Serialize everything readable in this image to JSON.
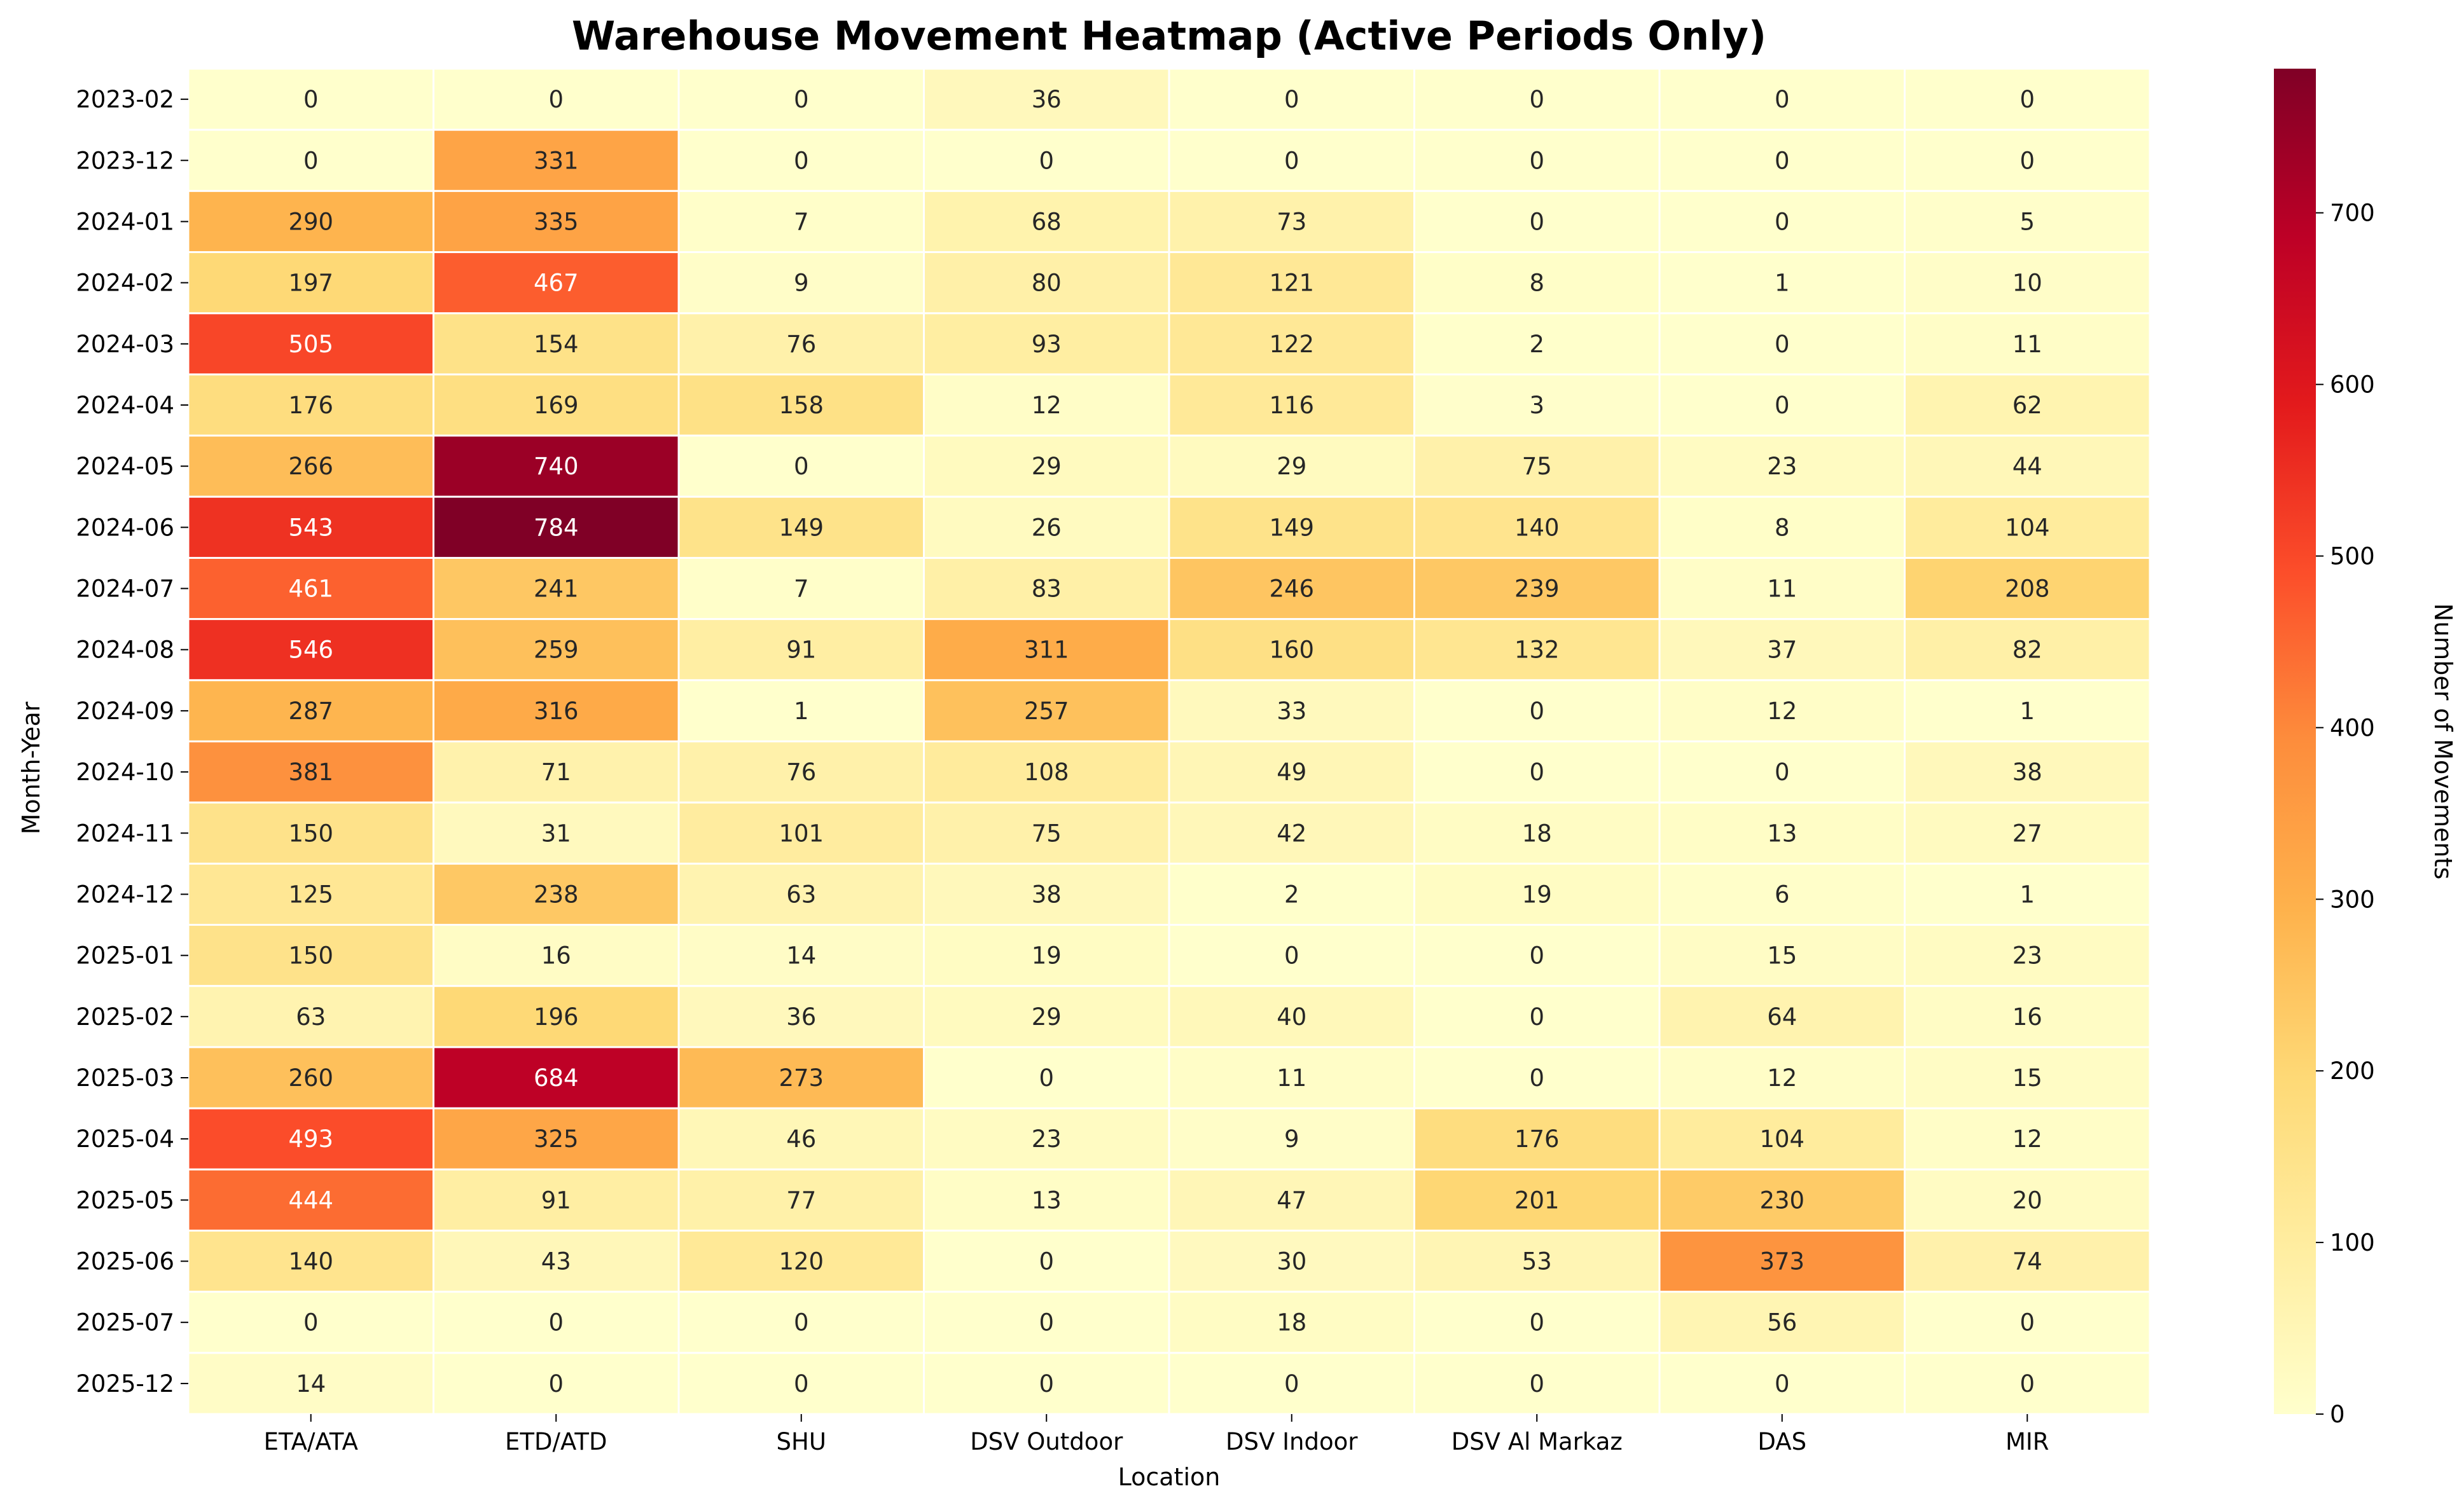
{
  "chart_data": {
    "type": "heatmap",
    "title": "Warehouse Movement Heatmap (Active Periods Only)",
    "xlabel": "Location",
    "ylabel": "Month-Year",
    "colorbar_label": "Number of Movements",
    "colormap": "YlOrRd",
    "color_stops": [
      "#ffffcc",
      "#ffeda0",
      "#fed976",
      "#feb24c",
      "#fd8d3c",
      "#fc4e2a",
      "#e31a1c",
      "#bd0026",
      "#800026"
    ],
    "vmin": 0,
    "vmax": 784,
    "colorbar_ticks": [
      0,
      100,
      200,
      300,
      400,
      500,
      600,
      700
    ],
    "columns": [
      "ETA/ATA",
      "ETD/ATD",
      "SHU",
      "DSV Outdoor",
      "DSV Indoor",
      "DSV Al Markaz",
      "DAS",
      "MIR"
    ],
    "rows": [
      "2023-02",
      "2023-12",
      "2024-01",
      "2024-02",
      "2024-03",
      "2024-04",
      "2024-05",
      "2024-06",
      "2024-07",
      "2024-08",
      "2024-09",
      "2024-10",
      "2024-11",
      "2024-12",
      "2025-01",
      "2025-02",
      "2025-03",
      "2025-04",
      "2025-05",
      "2025-06",
      "2025-07",
      "2025-12"
    ],
    "values": [
      [
        0,
        0,
        0,
        36,
        0,
        0,
        0,
        0
      ],
      [
        0,
        331,
        0,
        0,
        0,
        0,
        0,
        0
      ],
      [
        290,
        335,
        7,
        68,
        73,
        0,
        0,
        5
      ],
      [
        197,
        467,
        9,
        80,
        121,
        8,
        1,
        10
      ],
      [
        505,
        154,
        76,
        93,
        122,
        2,
        0,
        11
      ],
      [
        176,
        169,
        158,
        12,
        116,
        3,
        0,
        62
      ],
      [
        266,
        740,
        0,
        29,
        29,
        75,
        23,
        44
      ],
      [
        543,
        784,
        149,
        26,
        149,
        140,
        8,
        104
      ],
      [
        461,
        241,
        7,
        83,
        246,
        239,
        11,
        208
      ],
      [
        546,
        259,
        91,
        311,
        160,
        132,
        37,
        82
      ],
      [
        287,
        316,
        1,
        257,
        33,
        0,
        12,
        1
      ],
      [
        381,
        71,
        76,
        108,
        49,
        0,
        0,
        38
      ],
      [
        150,
        31,
        101,
        75,
        42,
        18,
        13,
        27
      ],
      [
        125,
        238,
        63,
        38,
        2,
        19,
        6,
        1
      ],
      [
        150,
        16,
        14,
        19,
        0,
        0,
        15,
        23
      ],
      [
        63,
        196,
        36,
        29,
        40,
        0,
        64,
        16
      ],
      [
        260,
        684,
        273,
        0,
        11,
        0,
        12,
        15
      ],
      [
        493,
        325,
        46,
        23,
        9,
        176,
        104,
        12
      ],
      [
        444,
        91,
        77,
        13,
        47,
        201,
        230,
        20
      ],
      [
        140,
        43,
        120,
        0,
        30,
        53,
        373,
        74
      ],
      [
        0,
        0,
        0,
        0,
        18,
        0,
        56,
        0
      ],
      [
        14,
        0,
        0,
        0,
        0,
        0,
        0,
        0
      ]
    ],
    "grid": false,
    "annotations": "cell values shown in each cell"
  }
}
